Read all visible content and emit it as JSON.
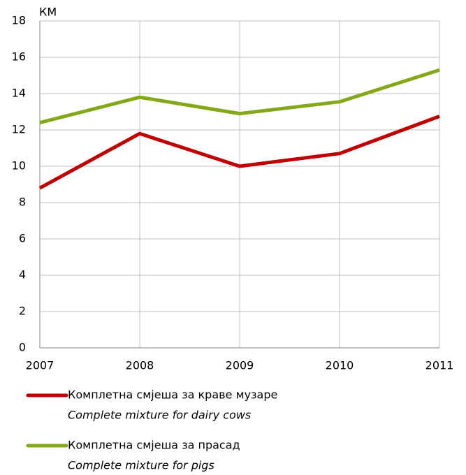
{
  "chart_data": {
    "type": "line",
    "y_label": "КМ",
    "x": [
      2007,
      2008,
      2009,
      2010,
      2011
    ],
    "xlim": [
      2007,
      2011
    ],
    "xticks": [
      2007,
      2008,
      2009,
      2010,
      2011
    ],
    "ylim": [
      0,
      18
    ],
    "yticks": [
      0,
      2,
      4,
      6,
      8,
      10,
      12,
      14,
      16,
      18
    ],
    "grid": true,
    "series": [
      {
        "name": "Комплетна смјеша за краве музаре",
        "name_english": "Complete mixture for dairy cows",
        "color": "#c00000",
        "values": [
          8.8,
          11.8,
          10.0,
          10.7,
          12.75
        ]
      },
      {
        "name": "Комплетна смјеша за прасад",
        "name_english": "Complete mixture for pigs",
        "color": "#84a817",
        "values": [
          12.4,
          13.8,
          12.9,
          13.55,
          15.3
        ]
      }
    ]
  }
}
